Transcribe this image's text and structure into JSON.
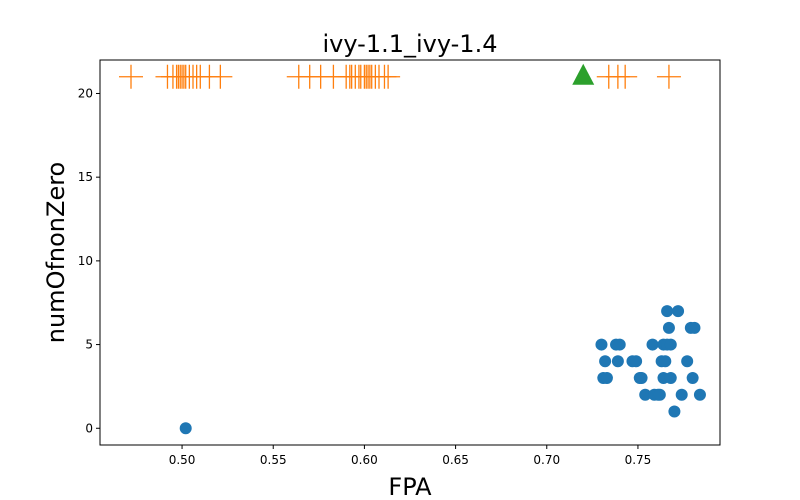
{
  "chart_data": {
    "type": "scatter",
    "title": "ivy-1.1_ivy-1.4",
    "xlabel": "FPA",
    "ylabel": "numOfnonZero",
    "xlim": [
      0.455,
      0.795
    ],
    "ylim": [
      -1.0,
      22.0
    ],
    "xticks": [
      0.5,
      0.55,
      0.6,
      0.65,
      0.7,
      0.75
    ],
    "xtick_labels": [
      "0.50",
      "0.55",
      "0.60",
      "0.65",
      "0.70",
      "0.75"
    ],
    "yticks": [
      0,
      5,
      10,
      15,
      20
    ],
    "ytick_labels": [
      "0",
      "5",
      "10",
      "15",
      "20"
    ],
    "grid": false,
    "series": [
      {
        "marker": "circle",
        "color": "#1f77b4",
        "points": [
          [
            0.502,
            0
          ],
          [
            0.73,
            5
          ],
          [
            0.731,
            3
          ],
          [
            0.732,
            4
          ],
          [
            0.733,
            3
          ],
          [
            0.738,
            5
          ],
          [
            0.739,
            4
          ],
          [
            0.74,
            5
          ],
          [
            0.747,
            4
          ],
          [
            0.749,
            4
          ],
          [
            0.751,
            3
          ],
          [
            0.752,
            3
          ],
          [
            0.754,
            2
          ],
          [
            0.758,
            5
          ],
          [
            0.759,
            2
          ],
          [
            0.761,
            2
          ],
          [
            0.762,
            2
          ],
          [
            0.763,
            4
          ],
          [
            0.764,
            3
          ],
          [
            0.764,
            5
          ],
          [
            0.765,
            4
          ],
          [
            0.766,
            7
          ],
          [
            0.766,
            5
          ],
          [
            0.767,
            6
          ],
          [
            0.768,
            3
          ],
          [
            0.768,
            5
          ],
          [
            0.77,
            1
          ],
          [
            0.772,
            7
          ],
          [
            0.774,
            2
          ],
          [
            0.777,
            4
          ],
          [
            0.779,
            6
          ],
          [
            0.78,
            3
          ],
          [
            0.781,
            6
          ],
          [
            0.784,
            2
          ]
        ]
      },
      {
        "marker": "plus",
        "color": "#ff7f0e",
        "points": [
          [
            0.472,
            21
          ],
          [
            0.492,
            21
          ],
          [
            0.495,
            21
          ],
          [
            0.497,
            21
          ],
          [
            0.498,
            21
          ],
          [
            0.499,
            21
          ],
          [
            0.5,
            21
          ],
          [
            0.501,
            21
          ],
          [
            0.502,
            21
          ],
          [
            0.504,
            21
          ],
          [
            0.506,
            21
          ],
          [
            0.508,
            21
          ],
          [
            0.51,
            21
          ],
          [
            0.515,
            21
          ],
          [
            0.521,
            21
          ],
          [
            0.564,
            21
          ],
          [
            0.57,
            21
          ],
          [
            0.576,
            21
          ],
          [
            0.583,
            21
          ],
          [
            0.59,
            21
          ],
          [
            0.592,
            21
          ],
          [
            0.593,
            21
          ],
          [
            0.595,
            21
          ],
          [
            0.597,
            21
          ],
          [
            0.598,
            21
          ],
          [
            0.6,
            21
          ],
          [
            0.601,
            21
          ],
          [
            0.602,
            21
          ],
          [
            0.603,
            21
          ],
          [
            0.604,
            21
          ],
          [
            0.606,
            21
          ],
          [
            0.608,
            21
          ],
          [
            0.611,
            21
          ],
          [
            0.613,
            21
          ],
          [
            0.734,
            21
          ],
          [
            0.739,
            21
          ],
          [
            0.743,
            21
          ],
          [
            0.767,
            21
          ]
        ]
      },
      {
        "marker": "triangle",
        "color": "#2ca02c",
        "points": [
          [
            0.72,
            21
          ]
        ]
      }
    ]
  }
}
